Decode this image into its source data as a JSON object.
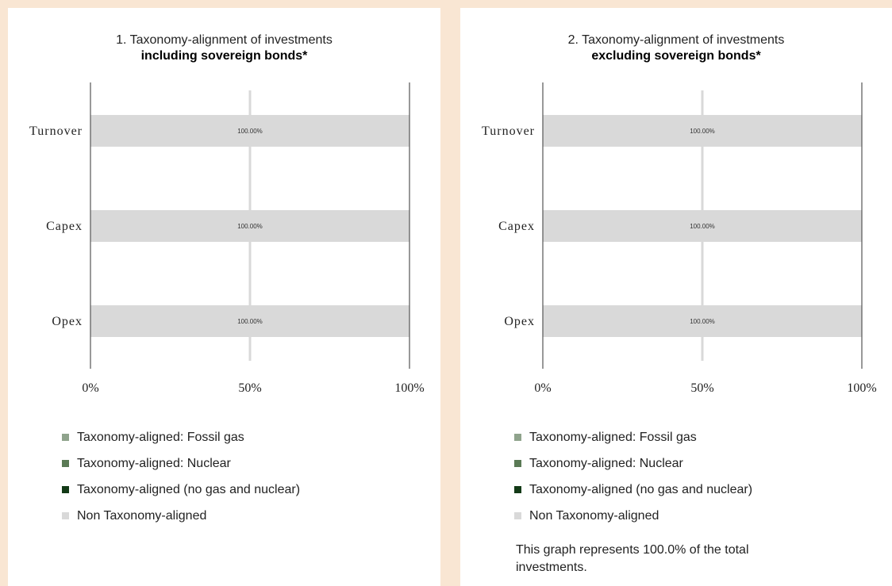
{
  "chart_data": [
    {
      "type": "bar",
      "title": "1. Taxonomy-alignment of investments",
      "subtitle": "including sovereign bonds*",
      "categories": [
        "Turnover",
        "Capex",
        "Opex"
      ],
      "series": [
        {
          "name": "Taxonomy-aligned: Fossil gas",
          "values": [
            0,
            0,
            0
          ]
        },
        {
          "name": "Taxonomy-aligned: Nuclear",
          "values": [
            0,
            0,
            0
          ]
        },
        {
          "name": "Taxonomy-aligned (no gas and nuclear)",
          "values": [
            0,
            0,
            0
          ]
        },
        {
          "name": "Non Taxonomy-aligned",
          "values": [
            100,
            100,
            100
          ]
        }
      ],
      "data_labels": [
        "100.00%",
        "100.00%",
        "100.00%"
      ],
      "xticks": [
        "0%",
        "50%",
        "100%"
      ],
      "xlim": [
        0,
        100
      ],
      "orientation": "horizontal",
      "stacked": true,
      "legend_position": "bottom"
    },
    {
      "type": "bar",
      "title": "2. Taxonomy-alignment of investments",
      "subtitle": "excluding sovereign bonds*",
      "categories": [
        "Turnover",
        "Capex",
        "Opex"
      ],
      "series": [
        {
          "name": "Taxonomy-aligned: Fossil gas",
          "values": [
            0,
            0,
            0
          ]
        },
        {
          "name": "Taxonomy-aligned: Nuclear",
          "values": [
            0,
            0,
            0
          ]
        },
        {
          "name": "Taxonomy-aligned (no gas and nuclear)",
          "values": [
            0,
            0,
            0
          ]
        },
        {
          "name": "Non Taxonomy-aligned",
          "values": [
            100,
            100,
            100
          ]
        }
      ],
      "data_labels": [
        "100.00%",
        "100.00%",
        "100.00%"
      ],
      "xticks": [
        "0%",
        "50%",
        "100%"
      ],
      "xlim": [
        0,
        100
      ],
      "orientation": "horizontal",
      "stacked": true,
      "legend_position": "bottom",
      "note": "This graph represents 100.0% of the total investments."
    }
  ],
  "series_colors": [
    "#8fa38c",
    "#5a7a55",
    "#133a17",
    "#d9d9d9"
  ],
  "colors": {
    "background": "#f9e6d3",
    "panel": "#ffffff",
    "bar": "#d9d9d9",
    "axis": "#555555",
    "midline": "#d9d9d9"
  }
}
